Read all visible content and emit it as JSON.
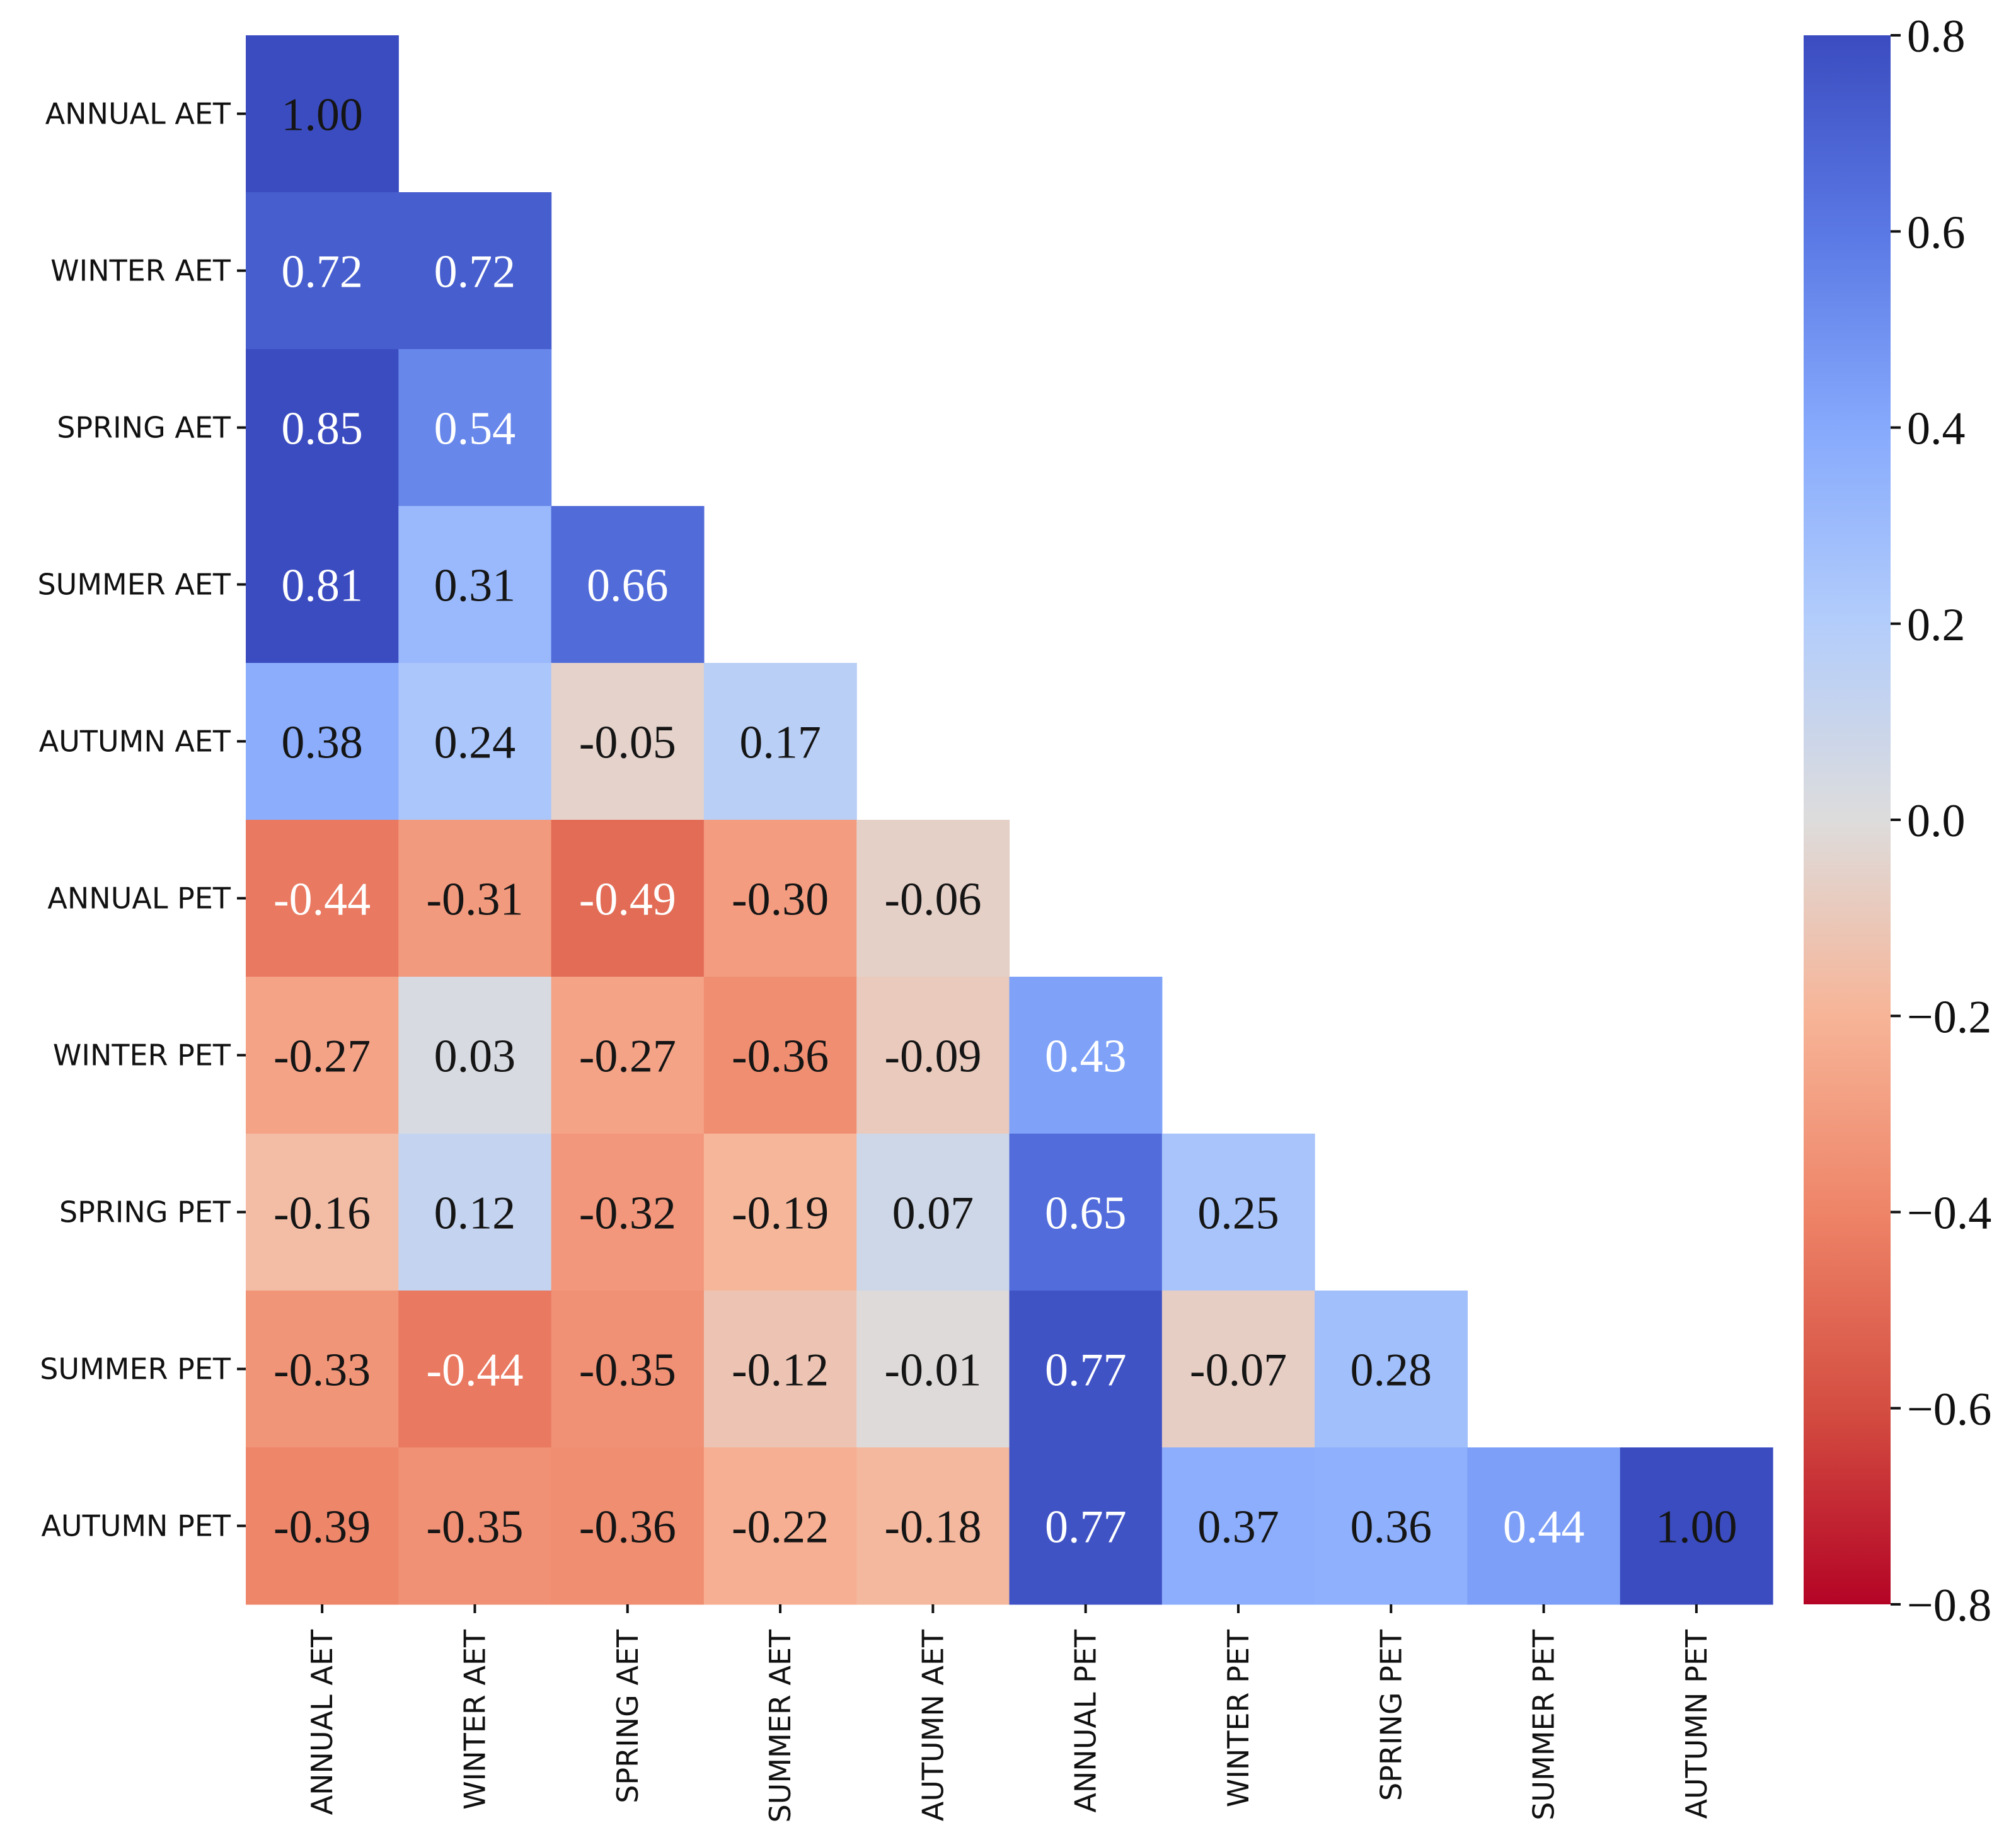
{
  "chart_data": {
    "type": "heatmap",
    "title": "",
    "xlabel": "",
    "ylabel": "",
    "rows": [
      "ANNUAL AET",
      "WINTER AET",
      "SPRING AET",
      "SUMMER AET",
      "AUTUMN AET",
      "ANNUAL PET",
      "WINTER PET",
      "SPRING PET",
      "SUMMER PET",
      "AUTUMN PET"
    ],
    "columns": [
      "ANNUAL AET",
      "WINTER AET",
      "SPRING AET",
      "SUMMER AET",
      "AUTUMN AET",
      "ANNUAL PET",
      "WINTER PET",
      "SPRING PET",
      "SUMMER PET",
      "AUTUMN PET"
    ],
    "mask": "upper triangle (lower-triangular matrix incl. diagonal shown)",
    "values": [
      [
        "1.00"
      ],
      [
        "0.72",
        null
      ],
      [
        "0.85",
        "0.54",
        null
      ],
      [
        "0.81",
        "0.31",
        "0.66"
      ],
      [
        "0.38",
        "0.24",
        "-0.05",
        "0.17"
      ],
      [
        "-0.44",
        "-0.31",
        "-0.49",
        "-0.30",
        "-0.06"
      ],
      [
        "-0.27",
        "0.03",
        "-0.27",
        "-0.36",
        "-0.09",
        "0.43"
      ],
      [
        "-0.16",
        "0.12",
        "-0.32",
        "-0.19",
        "0.07",
        "0.65",
        "0.25"
      ],
      [
        "-0.33",
        "-0.44",
        "-0.35",
        "-0.12",
        "-0.01",
        "0.77",
        "-0.07",
        "0.28"
      ],
      [
        "-0.39",
        "-0.35",
        "-0.36",
        "-0.22",
        "-0.18",
        "0.77",
        "0.37",
        "0.36",
        "0.44",
        "1.00"
      ]
    ],
    "colorbar": {
      "colormap": "coolwarm_r",
      "vmin": -0.8,
      "vmax": 0.8,
      "ticks": [
        "0.8",
        "0.6",
        "0.4",
        "0.2",
        "0.0",
        "−0.2",
        "−0.4",
        "−0.6",
        "−0.8"
      ]
    }
  }
}
